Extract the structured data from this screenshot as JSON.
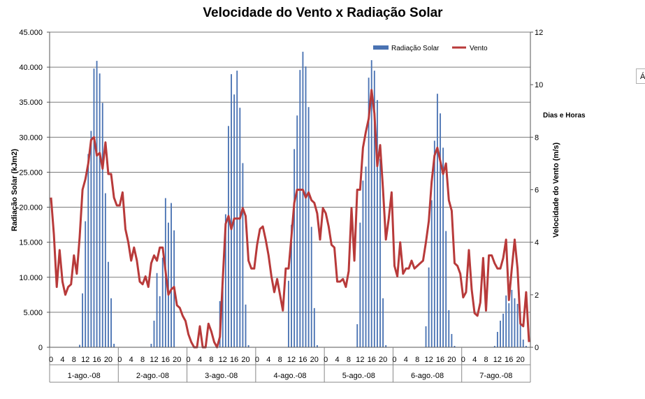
{
  "chart_data": {
    "type": "bar+line",
    "title": "Velocidade do Vento x Radiação Solar",
    "ylabel_left": "Radiação Solar (kJm2)",
    "ylabel_right": "Velocidade do Vento (m/s)",
    "ylim_left": [
      0,
      45000
    ],
    "ylim_right": [
      0,
      12
    ],
    "left_ticks": [
      "0",
      "5.000",
      "10.000",
      "15.000",
      "20.000",
      "25.000",
      "30.000",
      "35.000",
      "40.000",
      "45.000"
    ],
    "right_ticks": [
      "0",
      "2",
      "4",
      "6",
      "8",
      "10",
      "12"
    ],
    "grid": true,
    "legend_position": "top-right",
    "hour_labels": [
      "0",
      "4",
      "8",
      "12",
      "16",
      "20"
    ],
    "days": [
      "1-ago.-08",
      "2-ago.-08",
      "3-ago.-08",
      "4-ago.-08",
      "5-ago.-08",
      "6-ago.-08",
      "7-ago.-08"
    ],
    "side_label": "Dias e Horas",
    "series": [
      {
        "name": "Radiação Solar",
        "axis": "left",
        "color": "#4a73b3",
        "values": [
          [
            0,
            0,
            0,
            0,
            0,
            0,
            0,
            0,
            0,
            0,
            350,
            7700,
            18000,
            27600,
            30900,
            39800,
            40900,
            39100,
            34900,
            22000,
            12200,
            7000,
            500,
            0
          ],
          [
            0,
            0,
            0,
            0,
            0,
            0,
            0,
            0,
            0,
            0,
            0,
            500,
            3800,
            10600,
            7300,
            12800,
            21300,
            17800,
            20600,
            16700,
            0,
            0,
            0,
            0
          ],
          [
            0,
            0,
            0,
            0,
            0,
            0,
            0,
            0,
            0,
            0,
            0,
            6600,
            8700,
            19000,
            31600,
            39000,
            36100,
            39500,
            34200,
            26300,
            6100,
            300,
            0,
            0
          ],
          [
            0,
            0,
            0,
            0,
            0,
            0,
            0,
            0,
            0,
            0,
            0,
            9500,
            17500,
            28300,
            33100,
            39600,
            42200,
            40100,
            34300,
            17200,
            5600,
            300,
            0,
            0
          ],
          [
            0,
            0,
            0,
            0,
            0,
            0,
            0,
            0,
            0,
            0,
            0,
            3300,
            17800,
            23800,
            25800,
            38500,
            41000,
            39500,
            35300,
            26900,
            7000,
            300,
            0,
            0
          ],
          [
            0,
            0,
            0,
            0,
            0,
            0,
            0,
            0,
            0,
            0,
            0,
            3000,
            11400,
            21000,
            29500,
            36200,
            33400,
            28500,
            16600,
            5300,
            1900,
            200,
            0,
            0
          ],
          [
            0,
            0,
            0,
            0,
            0,
            0,
            0,
            0,
            0,
            0,
            0,
            200,
            2200,
            3800,
            4800,
            7400,
            6300,
            8200,
            7000,
            6200,
            5000,
            1100,
            200,
            0
          ]
        ]
      },
      {
        "name": "Vento",
        "axis": "right",
        "color": "#b83a3a",
        "values": [
          [
            5.7,
            4.3,
            2.3,
            3.7,
            2.5,
            2.0,
            2.3,
            2.4,
            3.5,
            2.8,
            4.2,
            6.0,
            6.4,
            7.0,
            7.9,
            8.0,
            7.3,
            7.4,
            6.8,
            7.8,
            6.6,
            6.6,
            5.7,
            5.4
          ],
          [
            5.4,
            5.9,
            4.5,
            4.0,
            3.3,
            3.8,
            3.3,
            2.5,
            2.4,
            2.7,
            2.3,
            3.2,
            3.5,
            3.3,
            3.8,
            3.8,
            2.9,
            2.0,
            2.2,
            2.3,
            1.6,
            1.5,
            1.2,
            1.0
          ],
          [
            0.5,
            0.2,
            0.0,
            0.0,
            0.8,
            0.0,
            0.0,
            0.9,
            0.6,
            0.2,
            0.0,
            0.4,
            2.6,
            4.7,
            5.0,
            4.5,
            4.9,
            4.9,
            4.9,
            5.3,
            5.0,
            3.3,
            3.0,
            3.0
          ],
          [
            3.9,
            4.5,
            4.6,
            4.1,
            3.5,
            2.7,
            2.1,
            2.6,
            2.0,
            1.4,
            3.0,
            3.0,
            4.2,
            5.5,
            6.0,
            6.0,
            6.0,
            5.7,
            5.9,
            5.6,
            5.5,
            5.1,
            4.1,
            5.3
          ],
          [
            5.1,
            4.6,
            3.9,
            3.8,
            2.5,
            2.5,
            2.6,
            2.3,
            2.9,
            5.3,
            3.3,
            6.0,
            6.0,
            7.6,
            8.2,
            8.7,
            9.8,
            8.9,
            6.9,
            7.7,
            6.0,
            4.1,
            4.9,
            5.9
          ],
          [
            3.1,
            2.7,
            4.0,
            2.8,
            3.0,
            3.0,
            3.3,
            3.0,
            3.1,
            3.2,
            3.3,
            4.0,
            4.8,
            6.3,
            7.3,
            7.6,
            7.1,
            6.6,
            7.0,
            5.6,
            5.2,
            3.2,
            3.1,
            2.8
          ],
          [
            1.9,
            2.1,
            3.7,
            2.2,
            1.3,
            1.2,
            1.7,
            3.4,
            1.4,
            3.5,
            3.5,
            3.2,
            3.0,
            3.0,
            3.4,
            4.1,
            1.8,
            3.0,
            4.1,
            3.0,
            0.9,
            0.8,
            2.1,
            0.2
          ]
        ]
      }
    ]
  }
}
